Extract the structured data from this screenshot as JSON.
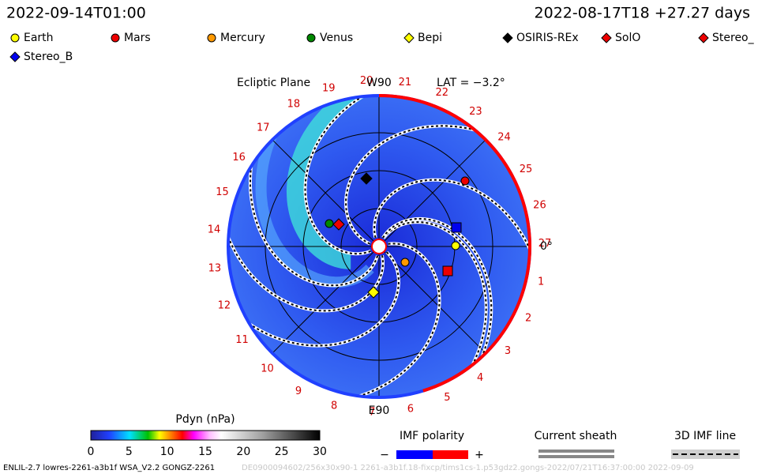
{
  "header": {
    "time": "2022-09-14T01:00",
    "reference": "2022-08-17T18 +27.27 days"
  },
  "legend": [
    {
      "name": "Earth",
      "color": "#ffff00",
      "marker": "circle"
    },
    {
      "name": "Mars",
      "color": "#ee0000",
      "marker": "circle"
    },
    {
      "name": "Mercury",
      "color": "#ff9900",
      "marker": "circle"
    },
    {
      "name": "Venus",
      "color": "#008800",
      "marker": "circle"
    },
    {
      "name": "Bepi",
      "color": "#ffff00",
      "marker": "diamond"
    },
    {
      "name": "OSIRIS-REx",
      "color": "#000000",
      "marker": "diamond"
    },
    {
      "name": "SolO",
      "color": "#ee0000",
      "marker": "diamond"
    },
    {
      "name": "Stereo_",
      "color": "#ee0000",
      "marker": "diamond"
    },
    {
      "name": "Stereo_B",
      "color": "#0000ee",
      "marker": "diamond"
    }
  ],
  "plot": {
    "title": "Ecliptic Plane",
    "top_label": "W90",
    "latitude": "LAT = −3.2°",
    "bottom_label": "E90",
    "right_label": "0°",
    "carrington": [
      1,
      2,
      3,
      4,
      5,
      6,
      7,
      8,
      9,
      10,
      11,
      12,
      13,
      14,
      15,
      16,
      17,
      18,
      19,
      20,
      21,
      22,
      23,
      24,
      25,
      26,
      27
    ]
  },
  "colorbar": {
    "title": "Pdyn (nPa)",
    "ticks": [
      0,
      5,
      10,
      15,
      20,
      25,
      30
    ]
  },
  "imf": {
    "title": "IMF polarity",
    "minus": "−",
    "plus": "+"
  },
  "sheath": {
    "title": "Current sheath"
  },
  "line3d": {
    "title": "3D IMF line"
  },
  "footer": {
    "left": "ENLIL-2.7 lowres-2261-a3b1f WSA_V2.2 GONGZ-2261",
    "right": "DE0900094602/256x30x90-1 2261-a3b1f.18-fixcp/tims1cs-1.p53gdz2.gongs-2022/07/21T16:37:00:00   2022-09-09"
  }
}
